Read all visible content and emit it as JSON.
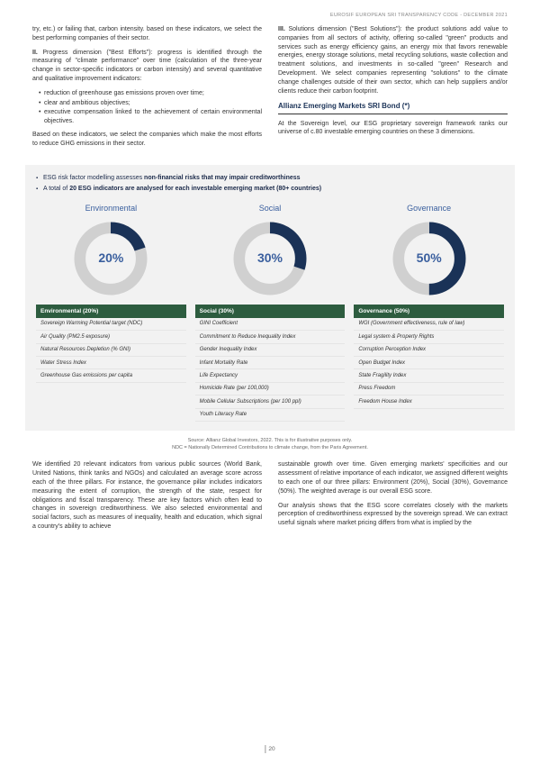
{
  "header": "EUROSIF EUROPEAN SRI TRANSPARENCY CODE - DECEMBER 2021",
  "top": {
    "left": {
      "p1": "try, etc.) or failing that, carbon intensity. based on these indicators, we select the best performing companies of their sector.",
      "p2_lead": "II.",
      "p2": "Progress dimension (\"Best Efforts\"): progress is identified through the measuring of \"climate performance\" over time (calculation of the three-year change in sector-specific indicators or carbon intensity) and several quantitative and qualitative improvement indicators:",
      "b1": "reduction of greenhouse gas emissions proven over time;",
      "b2": "clear and ambitious objectives;",
      "b3": "executive compensation linked to the achievement of certain environmental objectives.",
      "p3": "Based on these indicators, we select the companies which make the most efforts to reduce GHG emissions in their sector."
    },
    "right": {
      "p1_lead": "III.",
      "p1": "Solutions dimension (\"Best Solutions\"): the product solutions add value to companies from all sectors of activity, offering so-called \"green\" products and services such as energy efficiency gains, an energy mix that favors renewable energies, energy storage solutions, metal recycling solutions, waste collection and treatment solutions, and investments in so-called \"green\" Research and Development. We select companies representing \"solutions\" to the climate change challenges outside of their own sector, which can help suppliers and/or clients reduce their carbon footprint.",
      "subhead": "Allianz Emerging Markets SRI Bond (*)",
      "p2": "At the Sovereign level, our ESG proprietary sovereign framework ranks our universe of c.80 investable emerging countries on these 3 dimensions."
    }
  },
  "info": {
    "bullet1_a": "ESG risk factor modelling assesses ",
    "bullet1_b": "non-financial risks that may impair creditworthiness",
    "bullet2_a": "A total of ",
    "bullet2_b": "20 ESG indicators are analysed for each investable emerging market (80+ countries)",
    "pillars": [
      {
        "title": "Environmental",
        "pct": 20,
        "header": "Environmental (20%)",
        "items": [
          "Sovereign Warming Potential target (NDC)",
          "Air Quality (PM2.5 exposure)",
          "Natural Resources Depletion (% GNI)",
          "Water Stress Index",
          "Greenhouse Gas emissions per capita"
        ]
      },
      {
        "title": "Social",
        "pct": 30,
        "header": "Social (30%)",
        "items": [
          "GINI Coefficient",
          "Commitment to Reduce Inequality Index",
          "Gender Inequality Index",
          "Infant Mortality Rate",
          "Life Expectancy",
          "Homicide Rate (per 100,000)",
          "Mobile Cellular Subscriptions (per 100 ppl)",
          "Youth Literacy Rate"
        ]
      },
      {
        "title": "Governance",
        "pct": 50,
        "header": "Governance (50%)",
        "items": [
          "WGI (Government effectiveness, rule of law)",
          "Legal system & Property Rights",
          "Corruption Perception Index",
          "Open Budget Index",
          "State Fragility Index",
          "Press Freedom",
          "Freedom House Index"
        ]
      }
    ],
    "source1": "Source: Allianz Global Investors, 2022. This is for illustrative purposes only.",
    "source2": "NDC = Nationally Determined Contributions to climate change, from the Paris Agreement.",
    "donut": {
      "radius": 38,
      "stroke_fg": "#1a3257",
      "stroke_bg": "#d0d0d0"
    }
  },
  "bottom": {
    "left": "We identified 20 relevant indicators from various public sources (World Bank, United Nations, think tanks and NGOs) and calculated an average score across each of the three pillars. For instance, the governance pillar includes indicators measuring the extent of corruption, the strength of the state, respect for obligations and fiscal transparency. These are key factors which often lead to changes in sovereign creditworthiness. We also selected environmental and social factors, such as measures of inequality, health and education, which signal a country's ability to achieve",
    "right1": "sustainable growth over time. Given emerging markets' specificities and our assessment of relative importance of each indicator, we assigned different weights to each one of our three pillars: Environment (20%), Social (30%), Governance (50%). The weighted average is our overall ESG score.",
    "right2": "Our analysis shows that the ESG score correlates closely with the markets perception of creditworthiness expressed by the sovereign spread. We can extract useful signals where market pricing differs from what is implied by the"
  },
  "page": "20"
}
